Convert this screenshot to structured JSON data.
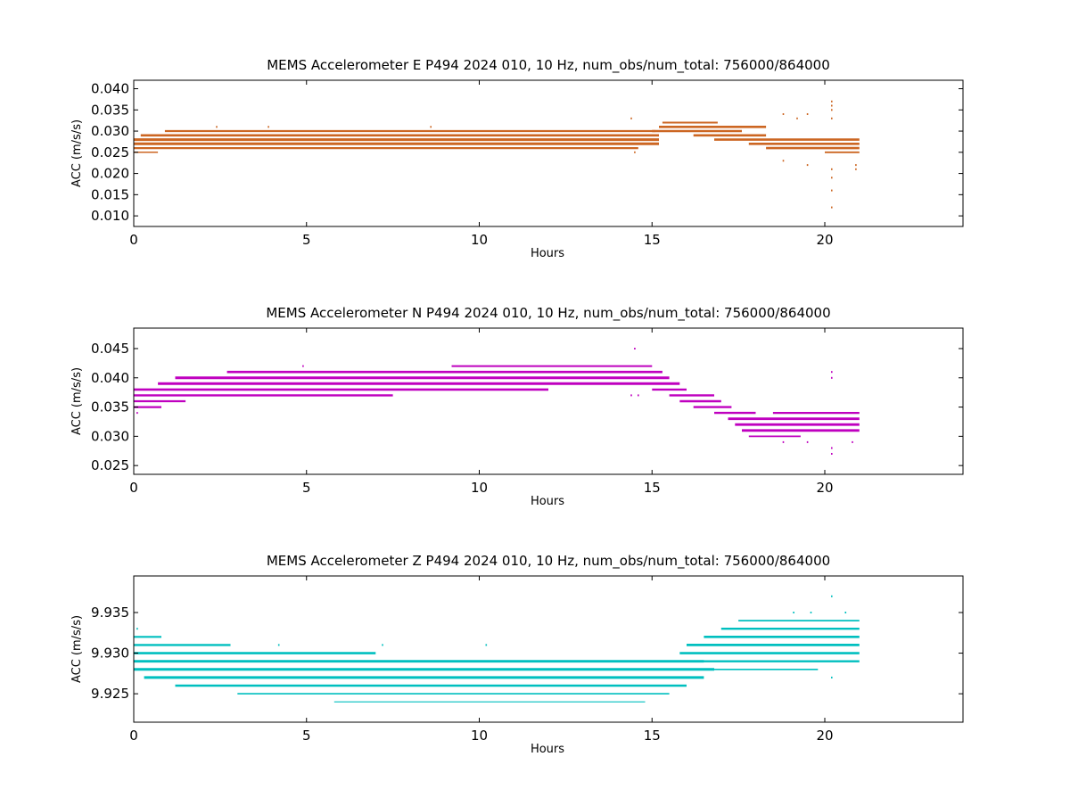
{
  "chart_data": [
    {
      "type": "scatter",
      "title": "MEMS Accelerometer E P494 2024 010, 10 Hz, num_obs/num_total: 756000/864000",
      "xlabel": "Hours",
      "ylabel": "ACC (m/s/s)",
      "xlim": [
        0,
        24
      ],
      "ylim": [
        0.0075,
        0.042
      ],
      "xticks": [
        "0",
        "5",
        "10",
        "15",
        "20"
      ],
      "yticks": [
        "0.010",
        "0.015",
        "0.020",
        "0.025",
        "0.030",
        "0.035",
        "0.040"
      ],
      "color": "#cc6622",
      "grid": false,
      "series": [
        {
          "bands": [
            {
              "y": 0.025,
              "x": [
                0.0,
                0.7
              ],
              "w": 1.5
            },
            {
              "y": 0.026,
              "x": [
                0.0,
                14.6
              ],
              "w": 2.2
            },
            {
              "y": 0.027,
              "x": [
                0.0,
                15.2
              ],
              "w": 3.0
            },
            {
              "y": 0.028,
              "x": [
                0.0,
                15.2
              ],
              "w": 3.0
            },
            {
              "y": 0.029,
              "x": [
                0.2,
                15.2
              ],
              "w": 2.6
            },
            {
              "y": 0.03,
              "x": [
                0.9,
                15.1
              ],
              "w": 2.2
            },
            {
              "y": 0.03,
              "x": [
                15.0,
                17.6
              ],
              "w": 2.4
            },
            {
              "y": 0.031,
              "x": [
                15.2,
                18.3
              ],
              "w": 2.6
            },
            {
              "y": 0.032,
              "x": [
                15.3,
                16.9
              ],
              "w": 2.0
            },
            {
              "y": 0.029,
              "x": [
                16.2,
                18.3
              ],
              "w": 2.6
            },
            {
              "y": 0.028,
              "x": [
                16.8,
                21.0
              ],
              "w": 2.6
            },
            {
              "y": 0.027,
              "x": [
                17.8,
                21.0
              ],
              "w": 2.6
            },
            {
              "y": 0.026,
              "x": [
                18.3,
                21.0
              ],
              "w": 2.6
            },
            {
              "y": 0.025,
              "x": [
                20.0,
                21.0
              ],
              "w": 1.8
            }
          ],
          "outliers": [
            [
              2.4,
              0.031
            ],
            [
              3.9,
              0.031
            ],
            [
              8.6,
              0.031
            ],
            [
              14.4,
              0.033
            ],
            [
              14.5,
              0.025
            ],
            [
              18.8,
              0.034
            ],
            [
              18.8,
              0.023
            ],
            [
              19.2,
              0.033
            ],
            [
              19.5,
              0.034
            ],
            [
              19.5,
              0.022
            ],
            [
              20.2,
              0.037
            ],
            [
              20.2,
              0.036
            ],
            [
              20.2,
              0.035
            ],
            [
              20.2,
              0.033
            ],
            [
              20.2,
              0.021
            ],
            [
              20.2,
              0.019
            ],
            [
              20.2,
              0.016
            ],
            [
              20.2,
              0.012
            ],
            [
              20.9,
              0.022
            ],
            [
              20.9,
              0.021
            ]
          ]
        }
      ]
    },
    {
      "type": "scatter",
      "title": "MEMS Accelerometer N P494 2024 010, 10 Hz, num_obs/num_total: 756000/864000",
      "xlabel": "Hours",
      "ylabel": "ACC (m/s/s)",
      "xlim": [
        0,
        24
      ],
      "ylim": [
        0.0235,
        0.0485
      ],
      "xticks": [
        "0",
        "5",
        "10",
        "15",
        "20"
      ],
      "yticks": [
        "0.025",
        "0.030",
        "0.035",
        "0.040",
        "0.045"
      ],
      "color": "#bf00bf",
      "grid": false,
      "series": [
        {
          "bands": [
            {
              "y": 0.035,
              "x": [
                0.0,
                0.8
              ],
              "w": 2.2
            },
            {
              "y": 0.036,
              "x": [
                0.0,
                1.5
              ],
              "w": 2.2
            },
            {
              "y": 0.037,
              "x": [
                0.0,
                7.5
              ],
              "w": 2.4
            },
            {
              "y": 0.038,
              "x": [
                0.0,
                12.0
              ],
              "w": 2.6
            },
            {
              "y": 0.039,
              "x": [
                0.7,
                15.8
              ],
              "w": 3.0
            },
            {
              "y": 0.04,
              "x": [
                1.2,
                15.5
              ],
              "w": 3.0
            },
            {
              "y": 0.041,
              "x": [
                2.7,
                15.3
              ],
              "w": 2.6
            },
            {
              "y": 0.042,
              "x": [
                9.2,
                15.0
              ],
              "w": 2.0
            },
            {
              "y": 0.038,
              "x": [
                15.0,
                16.0
              ],
              "w": 2.4
            },
            {
              "y": 0.037,
              "x": [
                15.5,
                16.8
              ],
              "w": 2.4
            },
            {
              "y": 0.036,
              "x": [
                15.8,
                17.0
              ],
              "w": 2.4
            },
            {
              "y": 0.035,
              "x": [
                16.2,
                17.3
              ],
              "w": 2.4
            },
            {
              "y": 0.034,
              "x": [
                16.8,
                18.0
              ],
              "w": 2.4
            },
            {
              "y": 0.033,
              "x": [
                17.2,
                21.0
              ],
              "w": 2.8
            },
            {
              "y": 0.032,
              "x": [
                17.4,
                21.0
              ],
              "w": 2.8
            },
            {
              "y": 0.031,
              "x": [
                17.6,
                21.0
              ],
              "w": 2.8
            },
            {
              "y": 0.034,
              "x": [
                18.5,
                21.0
              ],
              "w": 2.2
            },
            {
              "y": 0.03,
              "x": [
                17.8,
                19.3
              ],
              "w": 1.8
            }
          ],
          "outliers": [
            [
              0.1,
              0.034
            ],
            [
              4.9,
              0.042
            ],
            [
              14.5,
              0.045
            ],
            [
              14.4,
              0.037
            ],
            [
              14.6,
              0.037
            ],
            [
              18.8,
              0.029
            ],
            [
              19.5,
              0.029
            ],
            [
              20.2,
              0.041
            ],
            [
              20.2,
              0.04
            ],
            [
              20.2,
              0.028
            ],
            [
              20.2,
              0.027
            ],
            [
              20.8,
              0.029
            ]
          ]
        }
      ]
    },
    {
      "type": "scatter",
      "title": "MEMS Accelerometer Z P494 2024 010, 10 Hz, num_obs/num_total: 756000/864000",
      "xlabel": "Hours",
      "ylabel": "ACC (m/s/s)",
      "xlim": [
        0,
        24
      ],
      "ylim": [
        9.9215,
        9.9395
      ],
      "xticks": [
        "0",
        "5",
        "10",
        "15",
        "20"
      ],
      "yticks": [
        "9.925",
        "9.930",
        "9.935"
      ],
      "color": "#00bfbf",
      "grid": false,
      "series": [
        {
          "bands": [
            {
              "y": 9.932,
              "x": [
                0.0,
                0.8
              ],
              "w": 2.2
            },
            {
              "y": 9.931,
              "x": [
                0.0,
                2.8
              ],
              "w": 2.4
            },
            {
              "y": 9.93,
              "x": [
                0.0,
                7.0
              ],
              "w": 2.6
            },
            {
              "y": 9.929,
              "x": [
                0.0,
                16.5
              ],
              "w": 2.8
            },
            {
              "y": 9.928,
              "x": [
                0.0,
                16.8
              ],
              "w": 3.0
            },
            {
              "y": 9.927,
              "x": [
                0.3,
                16.5
              ],
              "w": 3.0
            },
            {
              "y": 9.926,
              "x": [
                1.2,
                16.0
              ],
              "w": 2.6
            },
            {
              "y": 9.925,
              "x": [
                3.0,
                15.5
              ],
              "w": 1.6
            },
            {
              "y": 9.924,
              "x": [
                5.8,
                14.8
              ],
              "w": 1.2
            },
            {
              "y": 9.929,
              "x": [
                15.2,
                21.0
              ],
              "w": 2.4
            },
            {
              "y": 9.93,
              "x": [
                15.8,
                21.0
              ],
              "w": 2.6
            },
            {
              "y": 9.931,
              "x": [
                16.0,
                21.0
              ],
              "w": 2.8
            },
            {
              "y": 9.932,
              "x": [
                16.5,
                21.0
              ],
              "w": 2.6
            },
            {
              "y": 9.933,
              "x": [
                17.0,
                21.0
              ],
              "w": 2.4
            },
            {
              "y": 9.934,
              "x": [
                17.5,
                21.0
              ],
              "w": 1.8
            },
            {
              "y": 9.928,
              "x": [
                16.8,
                19.8
              ],
              "w": 1.6
            }
          ],
          "outliers": [
            [
              0.1,
              9.933
            ],
            [
              4.2,
              9.931
            ],
            [
              7.2,
              9.931
            ],
            [
              10.2,
              9.931
            ],
            [
              19.1,
              9.935
            ],
            [
              19.6,
              9.935
            ],
            [
              20.2,
              9.937
            ],
            [
              20.2,
              9.927
            ],
            [
              20.6,
              9.935
            ]
          ]
        }
      ]
    }
  ]
}
